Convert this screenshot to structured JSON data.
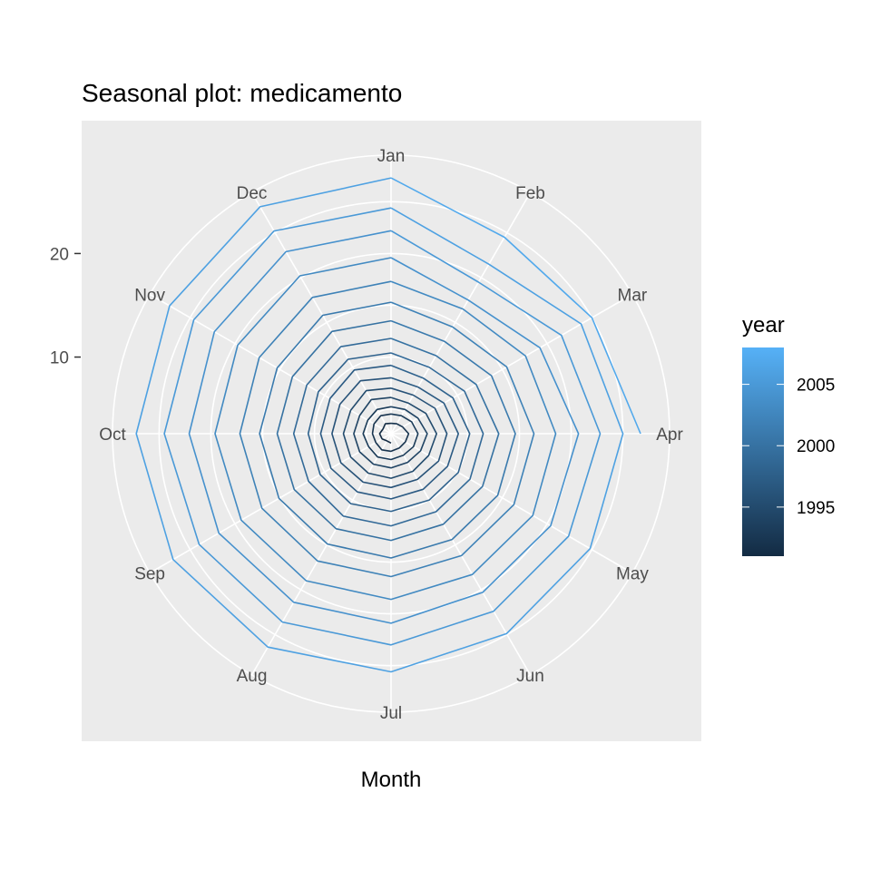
{
  "chart_data": {
    "type": "line",
    "coord": "polar",
    "title": "Seasonal plot: medicamento",
    "xlabel": "Month",
    "ylabel": "",
    "categories": [
      "Jan",
      "Feb",
      "Mar",
      "Apr",
      "May",
      "Jun",
      "Jul",
      "Aug",
      "Sep",
      "Oct",
      "Nov",
      "Dec"
    ],
    "rlim": [
      2.6,
      29.5
    ],
    "r_ticks": [
      10,
      20
    ],
    "grid": true,
    "legend": {
      "title": "year",
      "position": "right",
      "ticks": [
        1995,
        2000,
        2005
      ],
      "range": [
        1991,
        2008
      ],
      "color_low": "#132B43",
      "color_high": "#56B1F7"
    },
    "series": [
      {
        "year": 1991,
        "values": [
          null,
          null,
          null,
          null,
          null,
          null,
          3.5,
          3.4,
          3.6,
          3.7,
          3.5,
          3.7
        ]
      },
      {
        "year": 1992,
        "values": [
          3.6,
          3.7,
          3.9,
          4.3,
          4.2,
          4.2,
          4.3,
          4.4,
          4.3,
          4.4,
          4.5,
          4.6
        ]
      },
      {
        "year": 1993,
        "values": [
          4.5,
          4.6,
          4.9,
          5.2,
          5.1,
          5.0,
          5.1,
          5.2,
          5.1,
          5.3,
          5.2,
          5.3
        ]
      },
      {
        "year": 1994,
        "values": [
          5.2,
          5.3,
          5.6,
          6.1,
          5.9,
          5.8,
          5.9,
          6.0,
          6.1,
          6.2,
          6.1,
          6.4
        ]
      },
      {
        "year": 1995,
        "values": [
          6.1,
          6.0,
          6.5,
          7.0,
          6.8,
          6.8,
          6.9,
          7.0,
          7.1,
          7.2,
          7.1,
          7.4
        ]
      },
      {
        "year": 1996,
        "values": [
          7.0,
          6.9,
          7.5,
          8.0,
          7.9,
          7.7,
          7.8,
          8.0,
          8.2,
          8.3,
          8.3,
          8.5
        ]
      },
      {
        "year": 1997,
        "values": [
          8.0,
          7.8,
          8.5,
          9.1,
          8.9,
          8.8,
          8.9,
          9.1,
          9.3,
          9.4,
          9.4,
          9.7
        ]
      },
      {
        "year": 1998,
        "values": [
          9.2,
          8.8,
          9.5,
          10.2,
          10.1,
          10.0,
          10.1,
          10.4,
          10.5,
          10.6,
          10.7,
          10.9
        ]
      },
      {
        "year": 1999,
        "values": [
          10.4,
          10.0,
          10.8,
          11.5,
          11.4,
          11.3,
          11.5,
          11.8,
          11.8,
          12.0,
          12.0,
          12.3
        ]
      },
      {
        "year": 2000,
        "values": [
          11.8,
          11.3,
          12.1,
          13.0,
          12.8,
          12.7,
          12.9,
          13.2,
          13.4,
          13.6,
          13.6,
          14.0
        ]
      },
      {
        "year": 2001,
        "values": [
          13.5,
          12.9,
          13.8,
          14.6,
          14.5,
          14.4,
          14.6,
          14.9,
          15.1,
          15.3,
          15.3,
          15.8
        ]
      },
      {
        "year": 2002,
        "values": [
          15.3,
          14.5,
          15.5,
          16.4,
          16.3,
          16.2,
          16.4,
          16.8,
          17.0,
          17.2,
          17.3,
          17.8
        ]
      },
      {
        "year": 2003,
        "values": [
          17.3,
          16.5,
          17.6,
          18.5,
          18.4,
          18.3,
          18.6,
          19.0,
          19.3,
          19.6,
          19.7,
          20.2
        ]
      },
      {
        "year": 2004,
        "values": [
          19.6,
          17.5,
          19.2,
          20.7,
          20.4,
          20.3,
          20.9,
          21.4,
          21.8,
          22.1,
          22.3,
          22.9
        ]
      },
      {
        "year": 2005,
        "values": [
          22.2,
          19.5,
          21.6,
          22.8,
          22.4,
          22.4,
          23.0,
          23.6,
          24.0,
          24.5,
          24.6,
          25.2
        ]
      },
      {
        "year": 2006,
        "values": [
          24.4,
          21.5,
          23.8,
          25.0,
          24.8,
          24.9,
          25.6,
          26.4,
          26.9,
          27.2,
          27.3,
          27.9
        ]
      },
      {
        "year": 2007,
        "values": [
          27.3,
          24.5,
          25.0,
          26.7,
          null,
          null,
          null,
          null,
          null,
          null,
          null,
          null
        ]
      }
    ]
  }
}
